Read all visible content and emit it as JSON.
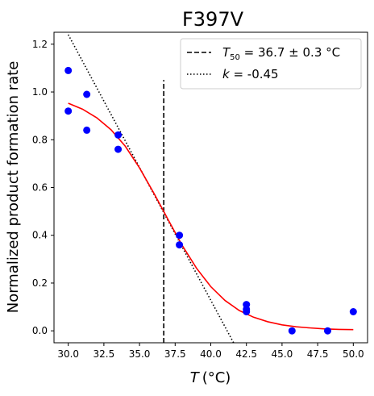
{
  "chart_data": {
    "type": "scatter",
    "title": "F397V",
    "xlabel_italic": "T",
    "xlabel_unit": "(°C)",
    "ylabel": "Normalized product formation rate",
    "xlim": [
      29.0,
      51.0
    ],
    "ylim": [
      -0.05,
      1.25
    ],
    "x_ticks": [
      "30.0",
      "32.5",
      "35.0",
      "37.5",
      "40.0",
      "42.5",
      "45.0",
      "47.5",
      "50.0"
    ],
    "x_tick_values": [
      30.0,
      32.5,
      35.0,
      37.5,
      40.0,
      42.5,
      45.0,
      47.5,
      50.0
    ],
    "y_ticks": [
      "0.0",
      "0.2",
      "0.4",
      "0.6",
      "0.8",
      "1.0",
      "1.2"
    ],
    "y_tick_values": [
      0.0,
      0.2,
      0.4,
      0.6,
      0.8,
      1.0,
      1.2
    ],
    "grid": false,
    "legend_position": "top-right",
    "points": {
      "color": "#0000ff",
      "x": [
        30.0,
        30.0,
        31.3,
        31.3,
        33.5,
        33.5,
        37.8,
        37.8,
        42.5,
        42.5,
        42.5,
        45.7,
        48.2,
        50.0
      ],
      "y": [
        1.09,
        0.92,
        0.99,
        0.84,
        0.82,
        0.76,
        0.4,
        0.36,
        0.11,
        0.09,
        0.08,
        0.0,
        0.0,
        0.08
      ]
    },
    "fit_curve": {
      "color": "#ff0000",
      "x": [
        30.0,
        31.0,
        32.0,
        33.0,
        34.0,
        35.0,
        36.0,
        36.7,
        37.0,
        38.0,
        39.0,
        40.0,
        41.0,
        42.0,
        43.0,
        44.0,
        45.0,
        46.0,
        47.0,
        48.0,
        49.0,
        50.0
      ],
      "y": [
        0.953,
        0.928,
        0.892,
        0.842,
        0.773,
        0.682,
        0.577,
        0.5,
        0.466,
        0.357,
        0.262,
        0.185,
        0.127,
        0.085,
        0.057,
        0.038,
        0.025,
        0.017,
        0.012,
        0.008,
        0.006,
        0.005
      ]
    },
    "t50_line": {
      "x": 36.7,
      "y": [
        -0.05,
        1.05
      ],
      "color": "#000000"
    },
    "slope_line": {
      "x": [
        30.0,
        41.6
      ],
      "y": [
        1.24,
        -0.05
      ],
      "color": "#000000"
    },
    "legend": [
      {
        "style": "dashed",
        "label_math": "T",
        "label_sub": "50",
        "label_rest": " = 36.7 ± 0.3 °C"
      },
      {
        "style": "dotted",
        "label_math": "k",
        "label_sub": "",
        "label_rest": " = -0.45"
      }
    ]
  }
}
